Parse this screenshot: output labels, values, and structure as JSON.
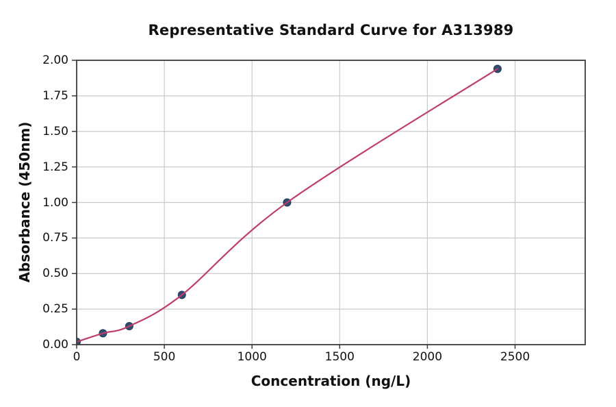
{
  "chart_data": {
    "type": "scatter",
    "title": "Representative Standard Curve for A313989",
    "xlabel": "Concentration (ng/L)",
    "ylabel": "Absorbance (450nm)",
    "x": [
      0,
      150,
      300,
      600,
      1200,
      2400
    ],
    "y": [
      0.02,
      0.08,
      0.13,
      0.35,
      1.0,
      1.94
    ],
    "fit_curve": true,
    "xlim": [
      0,
      2900
    ],
    "ylim": [
      0,
      2
    ],
    "xticks": [
      0,
      500,
      1000,
      1500,
      2000,
      2500
    ],
    "xtick_labels": [
      "0",
      "500",
      "1000",
      "1500",
      "2000",
      "2500"
    ],
    "yticks": [
      0,
      0.25,
      0.5,
      0.75,
      1.0,
      1.25,
      1.5,
      1.75,
      2.0
    ],
    "ytick_labels": [
      "0.00",
      "0.25",
      "0.50",
      "0.75",
      "1.00",
      "1.25",
      "1.50",
      "1.75",
      "2.00"
    ],
    "grid": true,
    "legend": null,
    "colors": {
      "curve": "#c23a68",
      "point_fill": "#2e4d71",
      "point_edge": "#1d3a5a",
      "grid": "#c9c9c9",
      "spine": "#3a3a3a",
      "text": "#111111",
      "background": "#ffffff"
    }
  }
}
